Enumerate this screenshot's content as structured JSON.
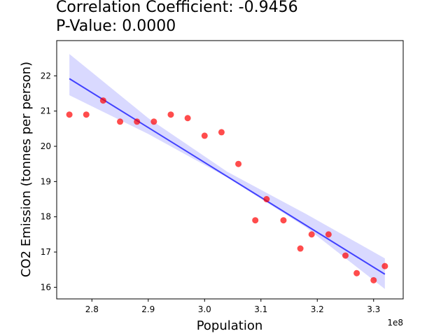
{
  "title_line1": "Correlation Coefficient: -0.9456",
  "title_line2": "P-Value: 0.0000",
  "chart_data": {
    "type": "scatter",
    "title": "Correlation Coefficient: -0.9456\nP-Value: 0.0000",
    "xlabel": "Population",
    "ylabel": "CO2 Emission (tonnes per person)",
    "x_offset_label": "1e8",
    "x_scale": 100000000,
    "xlim": [
      2.7375,
      3.3525
    ],
    "ylim": [
      15.67,
      23.0
    ],
    "x_ticks": [
      2.8,
      2.9,
      3.0,
      3.1,
      3.2,
      3.3
    ],
    "x_tick_labels": [
      "2.8",
      "2.9",
      "3.0",
      "3.1",
      "3.2",
      "3.3"
    ],
    "y_ticks": [
      16,
      17,
      18,
      19,
      20,
      21,
      22
    ],
    "y_tick_labels": [
      "16",
      "17",
      "18",
      "19",
      "20",
      "21",
      "22"
    ],
    "grid": false,
    "points": {
      "color": "#ff0000",
      "x": [
        2.76,
        2.79,
        2.82,
        2.85,
        2.88,
        2.91,
        2.94,
        2.97,
        3.0,
        3.03,
        3.06,
        3.09,
        3.11,
        3.14,
        3.17,
        3.19,
        3.22,
        3.25,
        3.27,
        3.3,
        3.32
      ],
      "y": [
        20.9,
        20.9,
        21.3,
        20.7,
        20.7,
        20.7,
        20.9,
        20.8,
        20.3,
        20.4,
        19.5,
        17.9,
        18.5,
        17.9,
        17.1,
        17.5,
        17.5,
        16.9,
        16.4,
        16.2,
        16.6
      ]
    },
    "regression": {
      "color": "#0000ff",
      "x": [
        2.76,
        3.32
      ],
      "y": [
        21.92,
        16.37
      ]
    },
    "confidence_band": {
      "color": "#0000ff",
      "x": [
        2.76,
        2.9,
        3.04,
        3.18,
        3.32
      ],
      "lower": [
        21.45,
        20.35,
        19.12,
        17.7,
        15.95
      ],
      "upper": [
        22.62,
        20.8,
        19.28,
        18.08,
        16.82
      ]
    }
  }
}
